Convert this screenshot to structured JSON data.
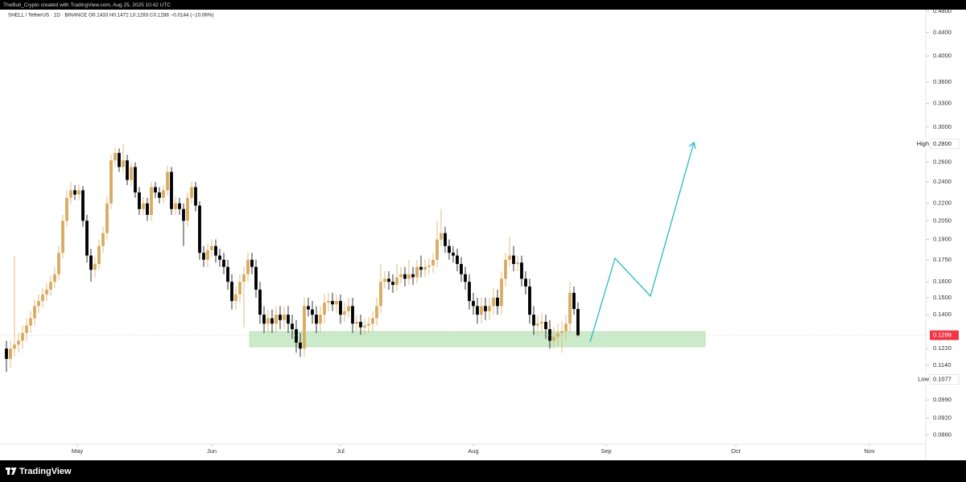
{
  "chart_data": {
    "type": "candlestick",
    "title": "TheBull_Crypto created with TradingView.com, Aug 25, 2025 10:42 UTC",
    "subtitle": "SHELL / TetherUS · 1D · BINANCE   O0.1433  H0.1472  L0.1283  C0.1288  −0.0144 (−10.06%)",
    "brand": "TradingView",
    "up_color": "#d9ab62",
    "down_color": "#000000",
    "log_scale": true,
    "grid": false,
    "ylim": [
      0.0825,
      0.483
    ],
    "yticks": [
      {
        "value": 0.48,
        "label": "0.4800"
      },
      {
        "value": 0.44,
        "label": "0.4400"
      },
      {
        "value": 0.4,
        "label": "0.4000"
      },
      {
        "value": 0.36,
        "label": "0.3600"
      },
      {
        "value": 0.33,
        "label": "0.3300"
      },
      {
        "value": 0.3,
        "label": "0.3000"
      },
      {
        "value": 0.26,
        "label": "0.2600"
      },
      {
        "value": 0.24,
        "label": "0.2400"
      },
      {
        "value": 0.22,
        "label": "0.2200"
      },
      {
        "value": 0.205,
        "label": "0.2050"
      },
      {
        "value": 0.19,
        "label": "0.1900"
      },
      {
        "value": 0.175,
        "label": "0.1750"
      },
      {
        "value": 0.16,
        "label": "0.1600"
      },
      {
        "value": 0.15,
        "label": "0.1500"
      },
      {
        "value": 0.14,
        "label": "0.1400"
      },
      {
        "value": 0.122,
        "label": "0.1220"
      },
      {
        "value": 0.114,
        "label": "0.1140"
      },
      {
        "value": 0.099,
        "label": "0.0990"
      },
      {
        "value": 0.092,
        "label": "0.0920"
      },
      {
        "value": 0.086,
        "label": "0.0860"
      }
    ],
    "xlim": [
      -1.6,
      228.4
    ],
    "xticks": [
      {
        "value": 17.6,
        "label": "May"
      },
      {
        "value": 51,
        "label": "Jun"
      },
      {
        "value": 83,
        "label": "Jul"
      },
      {
        "value": 116,
        "label": "Aug"
      },
      {
        "value": 149,
        "label": "Sep"
      },
      {
        "value": 181.2,
        "label": "Oct"
      },
      {
        "value": 214.4,
        "label": "Nov"
      }
    ],
    "price_labels": [
      {
        "name": "High",
        "value": 0.28,
        "label": "0.2800"
      },
      {
        "name": "Low",
        "value": 0.1077,
        "label": "0.1077"
      },
      {
        "value": 0.1288,
        "label": "0.1288",
        "color": "#f23645"
      }
    ],
    "open": [
      0.122,
      0.117,
      0.122,
      0.124,
      0.126,
      0.13,
      0.134,
      0.138,
      0.145,
      0.148,
      0.152,
      0.155,
      0.16,
      0.165,
      0.18,
      0.205,
      0.225,
      0.232,
      0.228,
      0.232,
      0.205,
      0.178,
      0.168,
      0.172,
      0.185,
      0.195,
      0.22,
      0.262,
      0.27,
      0.255,
      0.262,
      0.242,
      0.255,
      0.23,
      0.215,
      0.22,
      0.21,
      0.235,
      0.23,
      0.225,
      0.232,
      0.25,
      0.215,
      0.22,
      0.215,
      0.205,
      0.225,
      0.235,
      0.218,
      0.18,
      0.175,
      0.182,
      0.185,
      0.178,
      0.175,
      0.17,
      0.16,
      0.148,
      0.152,
      0.16,
      0.165,
      0.175,
      0.17,
      0.155,
      0.14,
      0.135,
      0.138,
      0.135,
      0.14,
      0.137,
      0.14,
      0.135,
      0.132,
      0.125,
      0.122,
      0.145,
      0.143,
      0.14,
      0.135,
      0.14,
      0.147,
      0.148,
      0.146,
      0.148,
      0.14,
      0.142,
      0.145,
      0.135,
      0.136,
      0.133,
      0.134,
      0.135,
      0.138,
      0.145,
      0.16,
      0.162,
      0.16,
      0.158,
      0.163,
      0.165,
      0.162,
      0.165,
      0.163,
      0.17,
      0.168,
      0.17,
      0.171,
      0.175,
      0.19,
      0.195,
      0.185,
      0.18,
      0.178,
      0.172,
      0.165,
      0.16,
      0.148,
      0.145,
      0.14,
      0.145,
      0.142,
      0.145,
      0.15,
      0.145,
      0.162,
      0.175,
      0.178,
      0.172,
      0.173,
      0.162,
      0.157,
      0.14,
      0.134,
      0.135,
      0.136,
      0.132,
      0.126,
      0.128,
      0.13,
      0.131,
      0.135,
      0.153,
      0.1433
    ],
    "high": [
      0.126,
      0.126,
      0.178,
      0.13,
      0.134,
      0.138,
      0.142,
      0.149,
      0.152,
      0.156,
      0.159,
      0.164,
      0.17,
      0.185,
      0.21,
      0.232,
      0.24,
      0.237,
      0.238,
      0.236,
      0.21,
      0.183,
      0.177,
      0.19,
      0.2,
      0.226,
      0.268,
      0.276,
      0.275,
      0.28,
      0.268,
      0.26,
      0.26,
      0.235,
      0.226,
      0.225,
      0.24,
      0.24,
      0.235,
      0.237,
      0.256,
      0.255,
      0.226,
      0.225,
      0.22,
      0.23,
      0.24,
      0.24,
      0.222,
      0.185,
      0.187,
      0.19,
      0.19,
      0.183,
      0.18,
      0.175,
      0.165,
      0.157,
      0.165,
      0.17,
      0.18,
      0.18,
      0.175,
      0.16,
      0.145,
      0.143,
      0.143,
      0.145,
      0.145,
      0.145,
      0.145,
      0.14,
      0.137,
      0.13,
      0.15,
      0.15,
      0.148,
      0.145,
      0.145,
      0.152,
      0.153,
      0.153,
      0.152,
      0.152,
      0.147,
      0.15,
      0.15,
      0.14,
      0.14,
      0.138,
      0.139,
      0.142,
      0.15,
      0.172,
      0.167,
      0.167,
      0.165,
      0.172,
      0.17,
      0.17,
      0.175,
      0.17,
      0.175,
      0.178,
      0.175,
      0.176,
      0.18,
      0.205,
      0.215,
      0.2,
      0.19,
      0.185,
      0.183,
      0.177,
      0.17,
      0.165,
      0.153,
      0.15,
      0.15,
      0.15,
      0.15,
      0.156,
      0.155,
      0.167,
      0.18,
      0.192,
      0.185,
      0.178,
      0.178,
      0.167,
      0.162,
      0.145,
      0.14,
      0.141,
      0.14,
      0.137,
      0.133,
      0.135,
      0.136,
      0.14,
      0.16,
      0.157,
      0.1472
    ],
    "low": [
      0.111,
      0.113,
      0.118,
      0.12,
      0.122,
      0.126,
      0.13,
      0.134,
      0.141,
      0.144,
      0.148,
      0.151,
      0.156,
      0.161,
      0.176,
      0.2,
      0.22,
      0.223,
      0.223,
      0.2,
      0.173,
      0.16,
      0.163,
      0.168,
      0.18,
      0.19,
      0.215,
      0.256,
      0.25,
      0.25,
      0.237,
      0.236,
      0.225,
      0.21,
      0.21,
      0.205,
      0.205,
      0.225,
      0.22,
      0.22,
      0.227,
      0.21,
      0.21,
      0.21,
      0.185,
      0.2,
      0.22,
      0.213,
      0.175,
      0.17,
      0.17,
      0.177,
      0.173,
      0.17,
      0.165,
      0.155,
      0.143,
      0.143,
      0.147,
      0.133,
      0.16,
      0.165,
      0.15,
      0.135,
      0.13,
      0.13,
      0.13,
      0.13,
      0.132,
      0.132,
      0.13,
      0.127,
      0.12,
      0.118,
      0.118,
      0.139,
      0.135,
      0.13,
      0.13,
      0.135,
      0.142,
      0.142,
      0.141,
      0.135,
      0.136,
      0.138,
      0.13,
      0.131,
      0.129,
      0.129,
      0.13,
      0.131,
      0.134,
      0.141,
      0.156,
      0.155,
      0.153,
      0.154,
      0.159,
      0.157,
      0.158,
      0.158,
      0.159,
      0.163,
      0.163,
      0.165,
      0.166,
      0.17,
      0.185,
      0.18,
      0.175,
      0.173,
      0.167,
      0.16,
      0.155,
      0.143,
      0.14,
      0.135,
      0.135,
      0.137,
      0.137,
      0.14,
      0.14,
      0.14,
      0.157,
      0.17,
      0.167,
      0.167,
      0.157,
      0.152,
      0.135,
      0.129,
      0.129,
      0.13,
      0.127,
      0.122,
      0.122,
      0.123,
      0.12,
      0.126,
      0.13,
      0.14,
      0.1283
    ],
    "close": [
      0.117,
      0.122,
      0.124,
      0.126,
      0.13,
      0.134,
      0.138,
      0.145,
      0.148,
      0.152,
      0.155,
      0.16,
      0.165,
      0.18,
      0.205,
      0.225,
      0.232,
      0.228,
      0.232,
      0.205,
      0.178,
      0.168,
      0.172,
      0.185,
      0.195,
      0.22,
      0.262,
      0.27,
      0.255,
      0.262,
      0.242,
      0.255,
      0.23,
      0.215,
      0.22,
      0.21,
      0.235,
      0.23,
      0.225,
      0.232,
      0.25,
      0.215,
      0.22,
      0.215,
      0.205,
      0.225,
      0.235,
      0.218,
      0.18,
      0.175,
      0.182,
      0.185,
      0.178,
      0.175,
      0.17,
      0.16,
      0.148,
      0.152,
      0.16,
      0.165,
      0.175,
      0.17,
      0.155,
      0.14,
      0.135,
      0.138,
      0.135,
      0.14,
      0.137,
      0.14,
      0.135,
      0.132,
      0.125,
      0.122,
      0.145,
      0.143,
      0.14,
      0.135,
      0.14,
      0.147,
      0.148,
      0.146,
      0.148,
      0.14,
      0.142,
      0.145,
      0.135,
      0.136,
      0.133,
      0.134,
      0.135,
      0.138,
      0.145,
      0.16,
      0.162,
      0.16,
      0.158,
      0.163,
      0.165,
      0.162,
      0.165,
      0.163,
      0.17,
      0.168,
      0.17,
      0.171,
      0.175,
      0.19,
      0.195,
      0.185,
      0.18,
      0.178,
      0.172,
      0.165,
      0.16,
      0.148,
      0.145,
      0.14,
      0.145,
      0.142,
      0.145,
      0.15,
      0.145,
      0.162,
      0.175,
      0.178,
      0.172,
      0.173,
      0.162,
      0.157,
      0.14,
      0.134,
      0.135,
      0.136,
      0.132,
      0.126,
      0.128,
      0.13,
      0.131,
      0.135,
      0.153,
      0.1433,
      0.1288
    ]
  }
}
